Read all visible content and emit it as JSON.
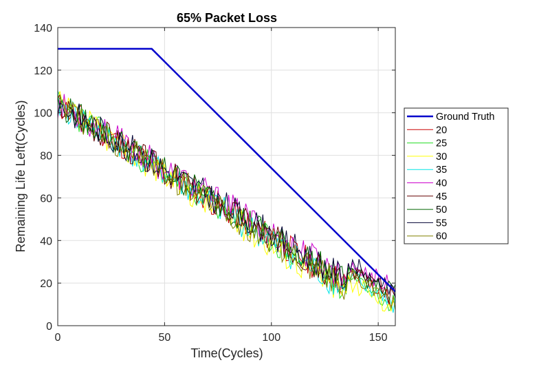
{
  "chart_data": {
    "type": "line",
    "title": "65% Packet Loss",
    "xlabel": "Time(Cycles)",
    "ylabel": "Remaining Life Left(Cycles)",
    "xlim": [
      0,
      158
    ],
    "ylim": [
      0,
      140
    ],
    "xticks": [
      0,
      50,
      100,
      150
    ],
    "yticks": [
      0,
      20,
      40,
      60,
      80,
      100,
      120,
      140
    ],
    "grid": true,
    "legend_position": "right",
    "ground_truth": {
      "name": "Ground Truth",
      "color": "#0000cc",
      "x": [
        0,
        44,
        158
      ],
      "y": [
        130,
        130,
        16
      ]
    },
    "series": [
      {
        "name": "20",
        "color": "#cc0000",
        "seed": 11,
        "end": 24
      },
      {
        "name": "25",
        "color": "#22dd22",
        "seed": 23,
        "end": 22
      },
      {
        "name": "30",
        "color": "#ffff00",
        "seed": 37,
        "end": 19
      },
      {
        "name": "35",
        "color": "#00e5e5",
        "seed": 41,
        "end": 21
      },
      {
        "name": "40",
        "color": "#cc00cc",
        "seed": 53,
        "end": 28
      },
      {
        "name": "45",
        "color": "#660000",
        "seed": 67,
        "end": 25
      },
      {
        "name": "50",
        "color": "#006600",
        "seed": 79,
        "end": 26
      },
      {
        "name": "55",
        "color": "#000033",
        "seed": 83,
        "end": 27
      },
      {
        "name": "60",
        "color": "#808000",
        "seed": 97,
        "end": 22
      }
    ]
  }
}
